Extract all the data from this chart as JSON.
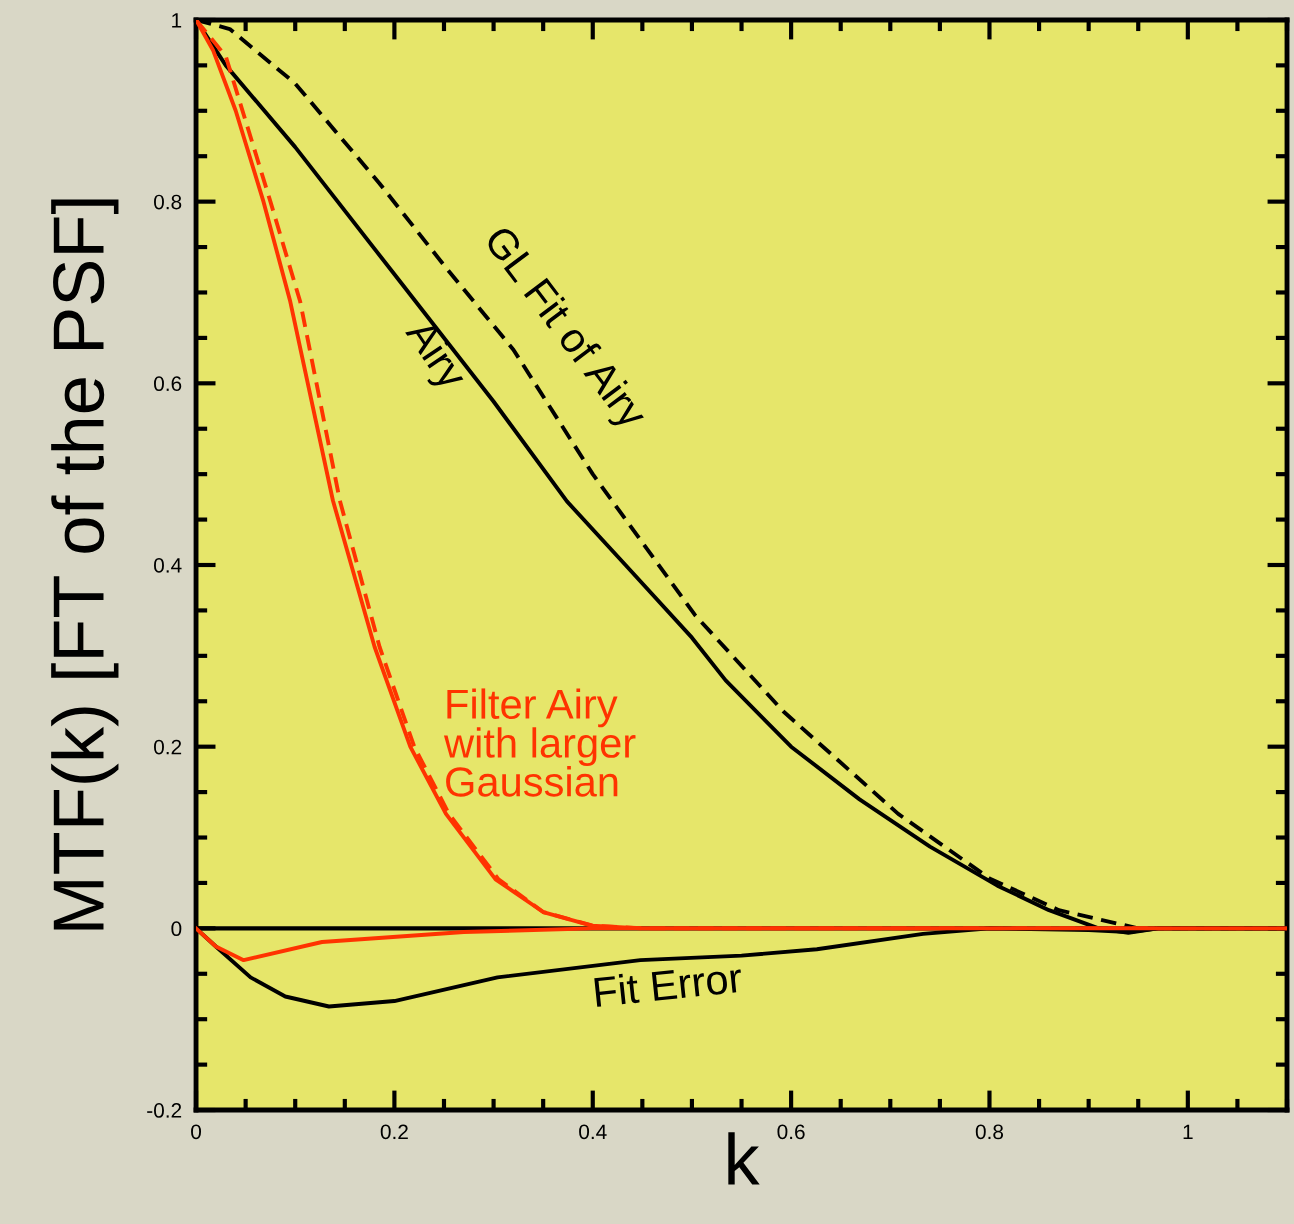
{
  "chart_data": {
    "type": "line",
    "xlabel": "k",
    "ylabel": "MTF(k) [FT of the PSF]",
    "xlim": [
      0,
      1.1
    ],
    "ylim": [
      -0.2,
      1
    ],
    "xticks": [
      0,
      0.2,
      0.4,
      0.6,
      0.8,
      1
    ],
    "yticks": [
      -0.2,
      0,
      0.2,
      0.4,
      0.6,
      0.8,
      1
    ],
    "grid": false,
    "legend": false,
    "series": [
      {
        "name": "Airy",
        "color": "#000000",
        "line_style": "solid",
        "x": [
          0,
          0.03,
          0.1,
          0.2,
          0.3,
          0.374,
          0.433,
          0.5,
          0.534,
          0.6,
          0.669,
          0.74,
          0.808,
          0.86,
          0.91,
          0.94,
          0.97,
          1.1
        ],
        "values": [
          1,
          0.95,
          0.86,
          0.72,
          0.58,
          0.47,
          0.4,
          0.32,
          0.273,
          0.2,
          0.142,
          0.09,
          0.047,
          0.02,
          0,
          -0.005,
          0,
          0
        ]
      },
      {
        "name": "GL Fit of Airy",
        "color": "#000000",
        "line_style": "dashed",
        "x": [
          0,
          0.034,
          0.1,
          0.185,
          0.25,
          0.32,
          0.4,
          0.503,
          0.592,
          0.708,
          0.8,
          0.87,
          0.95,
          1.1
        ],
        "values": [
          1,
          0.99,
          0.93,
          0.82,
          0.73,
          0.637,
          0.5,
          0.345,
          0.239,
          0.126,
          0.055,
          0.02,
          0,
          0
        ]
      },
      {
        "color": "#ff3300",
        "line_style": "dashed",
        "x": [
          0,
          0.03,
          0.075,
          0.105,
          0.145,
          0.185,
          0.22,
          0.255,
          0.305,
          0.35,
          0.4,
          0.45,
          1.1
        ],
        "values": [
          1,
          0.96,
          0.8,
          0.69,
          0.471,
          0.31,
          0.2,
          0.126,
          0.054,
          0.018,
          0.003,
          0,
          0
        ]
      },
      {
        "name": "Filter Airy\nwith larger\nGaussian",
        "color": "#ff3300",
        "line_style": "solid",
        "x": [
          0,
          0.017,
          0.04,
          0.068,
          0.095,
          0.138,
          0.18,
          0.216,
          0.252,
          0.302,
          0.35,
          0.399,
          0.45,
          1.1
        ],
        "values": [
          1,
          0.967,
          0.9,
          0.8,
          0.69,
          0.471,
          0.31,
          0.2,
          0.126,
          0.054,
          0.018,
          0.003,
          0,
          0
        ]
      },
      {
        "name": "Fit Error",
        "color": "#000000",
        "line_style": "solid",
        "x": [
          0,
          0.02,
          0.055,
          0.09,
          0.134,
          0.2,
          0.304,
          0.448,
          0.55,
          0.626,
          0.733,
          0.8,
          0.9,
          0.94,
          0.97,
          1.1
        ],
        "values": [
          0,
          -0.02,
          -0.054,
          -0.075,
          -0.086,
          -0.08,
          -0.054,
          -0.035,
          -0.03,
          -0.023,
          -0.006,
          0,
          -0.002,
          -0.004,
          0,
          0
        ]
      },
      {
        "color": "#ff3300",
        "line_style": "solid",
        "x": [
          0,
          0.02,
          0.048,
          0.127,
          0.27,
          0.4,
          1.1
        ],
        "values": [
          0,
          -0.02,
          -0.035,
          -0.015,
          -0.004,
          0,
          0
        ]
      }
    ],
    "ref_lines": [
      {
        "axis": "y",
        "value": 0,
        "color": "#000000"
      }
    ]
  }
}
